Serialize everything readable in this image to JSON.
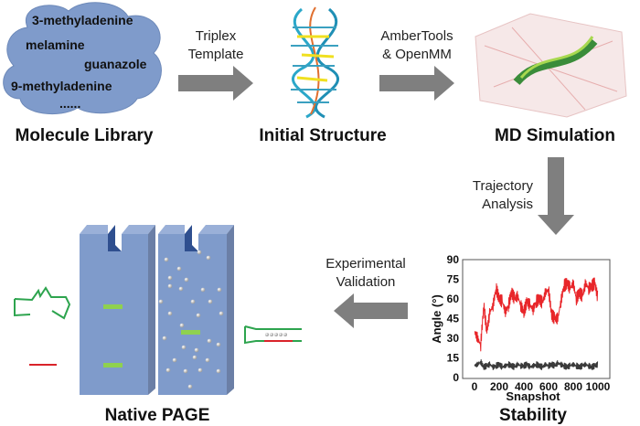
{
  "library": {
    "molecules": [
      "3-methyladenine",
      "melamine",
      "guanazole",
      "9-methyladenine",
      "......"
    ],
    "label": "Molecule Library"
  },
  "steps": {
    "triplex": [
      "Triplex",
      "Template"
    ],
    "amber": [
      "AmberTools",
      "& OpenMM"
    ],
    "trajectory": [
      "Trajectory",
      "Analysis"
    ],
    "validation": [
      "Experimental",
      "Validation"
    ]
  },
  "labels": {
    "initial": "Initial Structure",
    "md": "MD Simulation",
    "stability": "Stability",
    "page": "Native PAGE"
  },
  "colors": {
    "cloud": "#7f9bcb",
    "arrow": "#7f7f7f",
    "gel": "#7f9bcb",
    "band": "#8fd14f",
    "red_series": "#e8262a",
    "black_series": "#3a3a3a"
  },
  "chart_data": {
    "type": "line",
    "xlabel": "Snapshot",
    "ylabel": "Angle (°)",
    "xlim": [
      0,
      1000
    ],
    "ylim": [
      0,
      90
    ],
    "xticks": [
      0,
      200,
      400,
      600,
      800,
      1000
    ],
    "yticks": [
      0,
      15,
      30,
      45,
      60,
      75,
      90
    ],
    "x": [
      0,
      25,
      50,
      75,
      100,
      125,
      150,
      175,
      200,
      225,
      250,
      275,
      300,
      325,
      350,
      375,
      400,
      425,
      450,
      475,
      500,
      525,
      550,
      575,
      600,
      625,
      650,
      675,
      700,
      725,
      750,
      775,
      800,
      825,
      850,
      875,
      900,
      925,
      950,
      975,
      1000
    ],
    "series": [
      {
        "color": "#e8262a",
        "values": [
          35,
          30,
          25,
          55,
          35,
          50,
          55,
          68,
          60,
          58,
          50,
          55,
          65,
          60,
          62,
          55,
          50,
          58,
          55,
          52,
          58,
          60,
          57,
          65,
          67,
          48,
          45,
          45,
          58,
          70,
          72,
          68,
          72,
          60,
          65,
          62,
          72,
          68,
          70,
          72,
          60
        ]
      },
      {
        "color": "#3a3a3a",
        "values": [
          9,
          10,
          12,
          8,
          9,
          10,
          8,
          9,
          10,
          8,
          9,
          10,
          9,
          8,
          10,
          9,
          9,
          10,
          8,
          9,
          10,
          9,
          8,
          10,
          9,
          10,
          9,
          11,
          10,
          9,
          8,
          9,
          10,
          9,
          8,
          9,
          10,
          9,
          8,
          9,
          10
        ]
      }
    ]
  }
}
